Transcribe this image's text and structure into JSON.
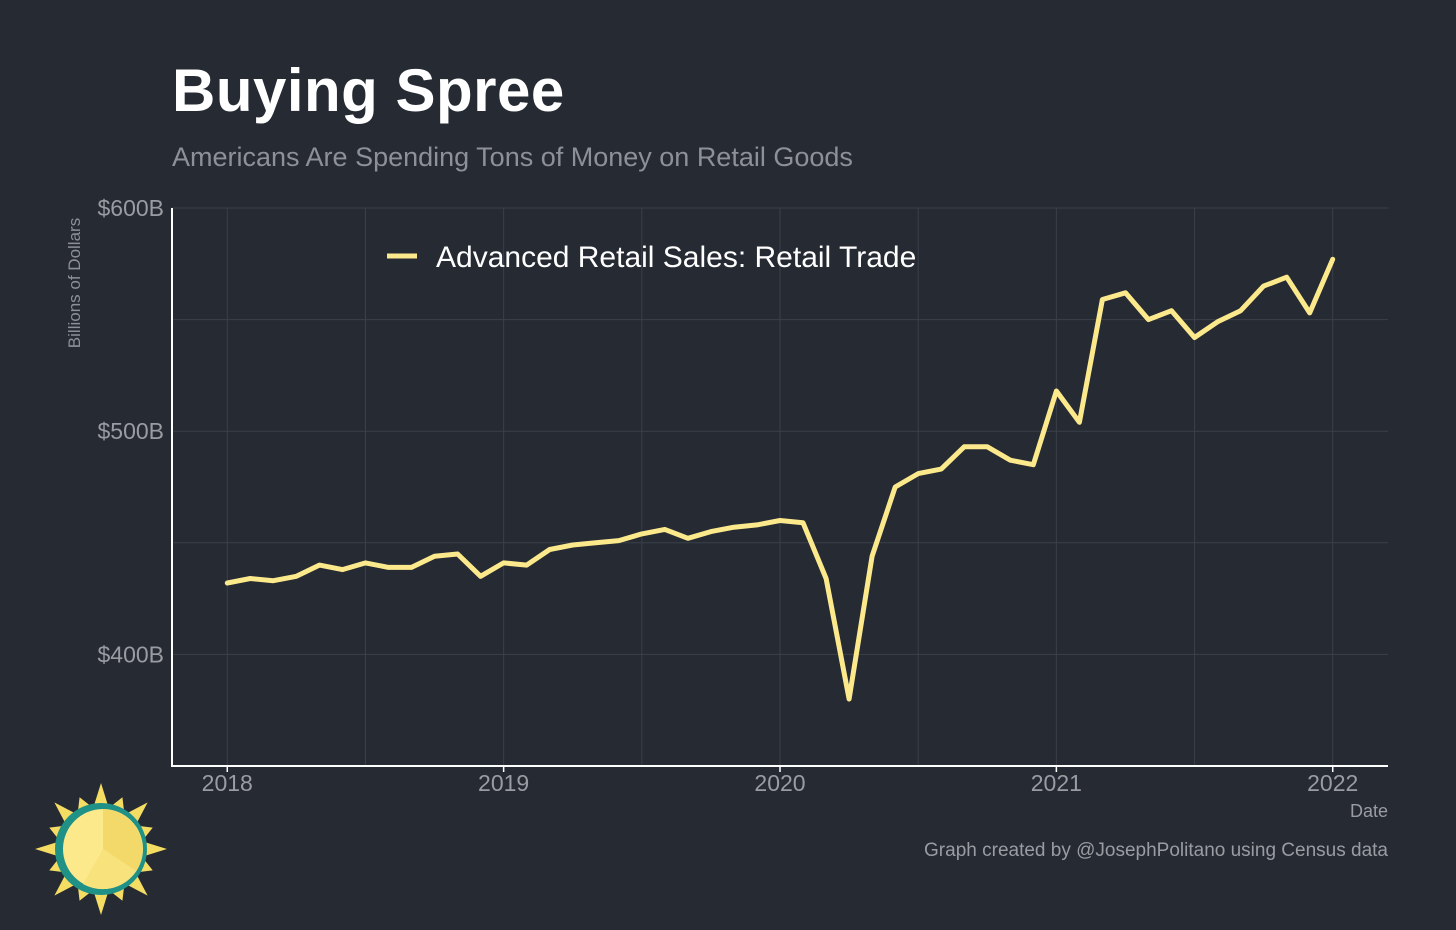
{
  "header": {
    "title": "Buying Spree",
    "subtitle": "Americans Are Spending Tons of Money on Retail Goods"
  },
  "footer": {
    "credit": "Graph created by @JosephPolitano using Census data"
  },
  "colors": {
    "background": "#252a33",
    "line": "#fce98c",
    "grid": "#3b404a",
    "axis": "#ffffff"
  },
  "icons": {
    "logo": "sun-logo-icon"
  },
  "chart_data": {
    "type": "line",
    "title": "Buying Spree",
    "subtitle": "Americans Are Spending Tons of Money on Retail Goods",
    "xlabel": "Date",
    "ylabel": "Billions of Dollars",
    "xlim": [
      2017.8,
      2022.2
    ],
    "ylim": [
      350,
      600
    ],
    "x_ticks": [
      2018,
      2019,
      2020,
      2021,
      2022
    ],
    "x_tick_labels": [
      "2018",
      "2019",
      "2020",
      "2021",
      "2022"
    ],
    "y_ticks": [
      400,
      500,
      600
    ],
    "y_tick_labels": [
      "$400B",
      "$500B",
      "$600B"
    ],
    "grid": true,
    "legend_position": "top-left",
    "series": [
      {
        "name": "Advanced Retail Sales: Retail Trade",
        "color": "#fce98c",
        "x": [
          "2018-01",
          "2018-02",
          "2018-03",
          "2018-04",
          "2018-05",
          "2018-06",
          "2018-07",
          "2018-08",
          "2018-09",
          "2018-10",
          "2018-11",
          "2018-12",
          "2019-01",
          "2019-02",
          "2019-03",
          "2019-04",
          "2019-05",
          "2019-06",
          "2019-07",
          "2019-08",
          "2019-09",
          "2019-10",
          "2019-11",
          "2019-12",
          "2020-01",
          "2020-02",
          "2020-03",
          "2020-04",
          "2020-05",
          "2020-06",
          "2020-07",
          "2020-08",
          "2020-09",
          "2020-10",
          "2020-11",
          "2020-12",
          "2021-01",
          "2021-02",
          "2021-03",
          "2021-04",
          "2021-05",
          "2021-06",
          "2021-07",
          "2021-08",
          "2021-09",
          "2021-10",
          "2021-11",
          "2021-12",
          "2022-01"
        ],
        "values": [
          432,
          434,
          433,
          435,
          440,
          438,
          441,
          439,
          439,
          444,
          445,
          435,
          441,
          440,
          447,
          449,
          450,
          451,
          454,
          456,
          452,
          455,
          457,
          458,
          460,
          459,
          434,
          380,
          444,
          475,
          481,
          483,
          493,
          493,
          487,
          485,
          518,
          504,
          559,
          562,
          550,
          554,
          542,
          549,
          554,
          565,
          569,
          553,
          577
        ]
      }
    ]
  }
}
